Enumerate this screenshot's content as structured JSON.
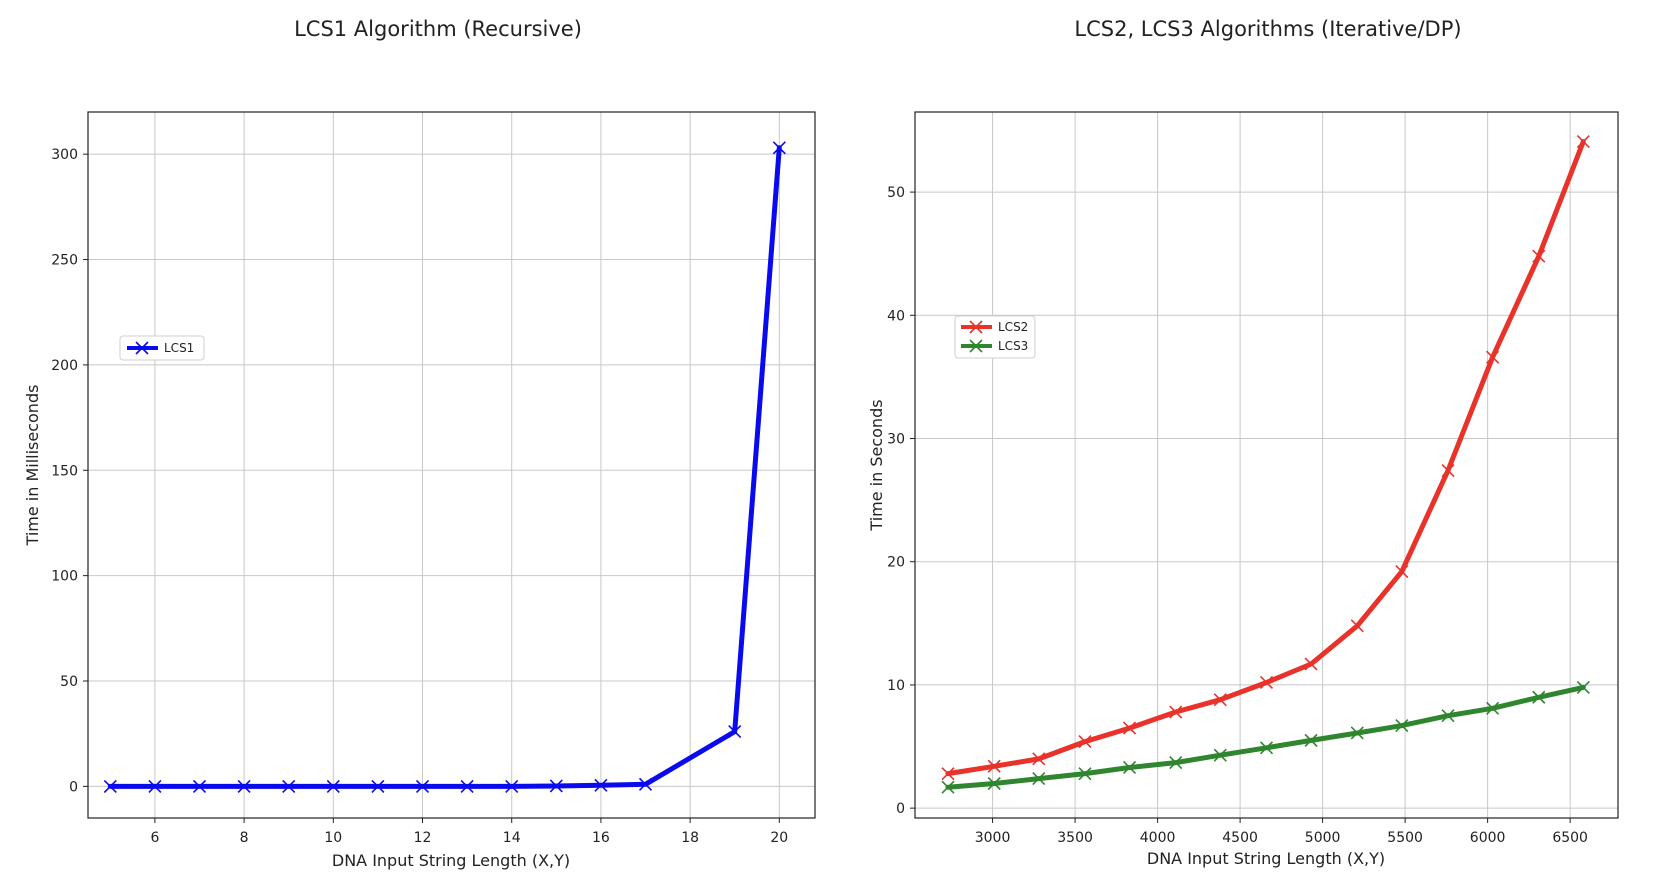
{
  "chart_data": [
    {
      "type": "line",
      "title": "LCS1 Algorithm (Recursive)",
      "xlabel": "DNA Input String Length (X,Y)",
      "ylabel": "Time in Milliseconds",
      "xlim": [
        4.5,
        20.8
      ],
      "ylim": [
        -15,
        320
      ],
      "xticks": [
        6,
        8,
        10,
        12,
        14,
        16,
        18,
        20
      ],
      "yticks": [
        0,
        50,
        100,
        150,
        200,
        250,
        300
      ],
      "grid": true,
      "legend": "center-left",
      "series": [
        {
          "name": "LCS1",
          "color": "#0a0aef",
          "marker": "x",
          "x": [
            5,
            6,
            7,
            8,
            9,
            10,
            11,
            12,
            13,
            14,
            15,
            16,
            17,
            19,
            20
          ],
          "y": [
            0,
            0,
            0,
            0,
            0,
            0,
            0,
            0,
            0,
            0,
            0.2,
            0.5,
            1,
            26,
            303
          ]
        }
      ]
    },
    {
      "type": "line",
      "title": "LCS2, LCS3 Algorithms (Iterative/DP)",
      "xlabel": "DNA Input String Length (X,Y)",
      "ylabel": "Time in Seconds",
      "xlim": [
        2530,
        6790
      ],
      "ylim": [
        -0.8,
        56.5
      ],
      "xticks": [
        3000,
        3500,
        4000,
        4500,
        5000,
        5500,
        6000,
        6500
      ],
      "yticks": [
        0,
        10,
        20,
        30,
        40,
        50
      ],
      "grid": true,
      "legend": "center-left",
      "series": [
        {
          "name": "LCS2",
          "color": "#e8322a",
          "marker": "x",
          "x": [
            2730,
            3010,
            3280,
            3560,
            3830,
            4110,
            4380,
            4660,
            4930,
            5210,
            5480,
            5760,
            6030,
            6310,
            6580
          ],
          "y": [
            2.8,
            3.4,
            4.0,
            5.4,
            6.5,
            7.8,
            8.8,
            10.2,
            11.7,
            14.8,
            19.2,
            27.4,
            36.6,
            44.8,
            54.1
          ]
        },
        {
          "name": "LCS3",
          "color": "#2f862f",
          "marker": "x",
          "x": [
            2730,
            3010,
            3280,
            3560,
            3830,
            4110,
            4380,
            4660,
            4930,
            5210,
            5480,
            5760,
            6030,
            6310,
            6580
          ],
          "y": [
            1.7,
            2.0,
            2.4,
            2.8,
            3.3,
            3.7,
            4.3,
            4.9,
            5.5,
            6.1,
            6.7,
            7.5,
            8.1,
            9.0,
            9.8
          ]
        }
      ]
    }
  ]
}
